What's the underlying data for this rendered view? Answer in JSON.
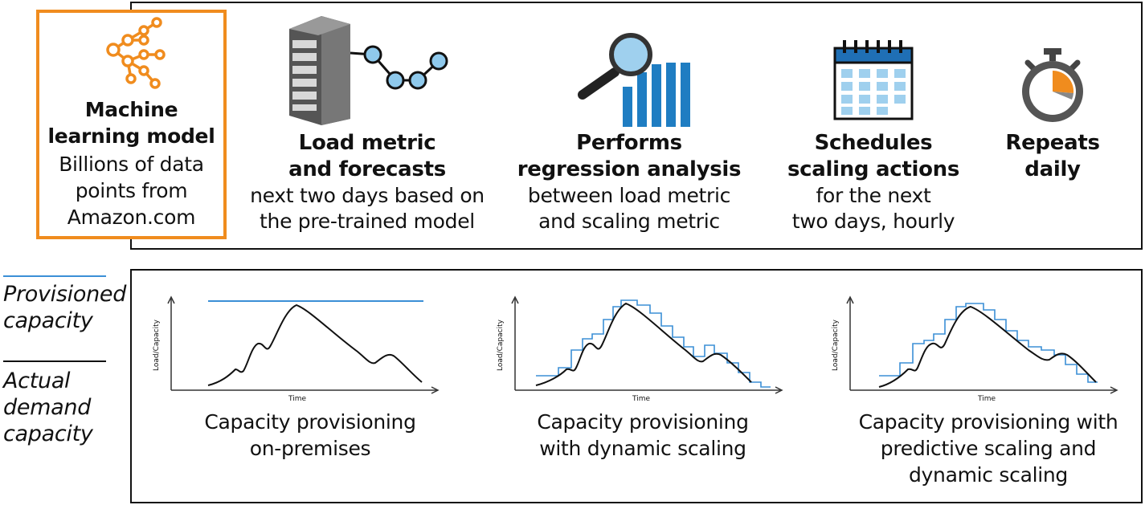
{
  "colors": {
    "accent_orange": "#f08c1e",
    "provisioned_blue": "#3b8fd6",
    "actual_black": "#111111",
    "bar_blue": "#1f7dc2"
  },
  "model": {
    "icon": "neural-network-icon",
    "title": "Machine learning model",
    "description": "Billions of data points from Amazon.com"
  },
  "steps": [
    {
      "icon": "server-icon",
      "title": "Load metric\nand forecasts",
      "description": "next two days based on\nthe pre-trained model"
    },
    {
      "icon": "magnifier-bar-chart-icon",
      "title": "Performs\nregression analysis",
      "description": "between load metric\nand scaling metric"
    },
    {
      "icon": "calendar-icon",
      "title": "Schedules\nscaling actions",
      "description": "for the next\ntwo days, hourly"
    },
    {
      "icon": "stopwatch-icon",
      "title": "Repeats\ndaily",
      "description": ""
    }
  ],
  "legend": {
    "provisioned_label": "Provisioned\ncapacity",
    "actual_label": "Actual\ndemand\ncapacity"
  },
  "charts": [
    {
      "ylabel": "Load/Capacity",
      "xlabel": "Time",
      "caption": "Capacity provisioning\non-premises"
    },
    {
      "ylabel": "Load/Capacity",
      "xlabel": "Time",
      "caption": "Capacity provisioning\nwith dynamic scaling"
    },
    {
      "ylabel": "Load/Capacity",
      "xlabel": "Time",
      "caption": "Capacity provisioning with\npredictive scaling and\ndynamic scaling"
    }
  ]
}
